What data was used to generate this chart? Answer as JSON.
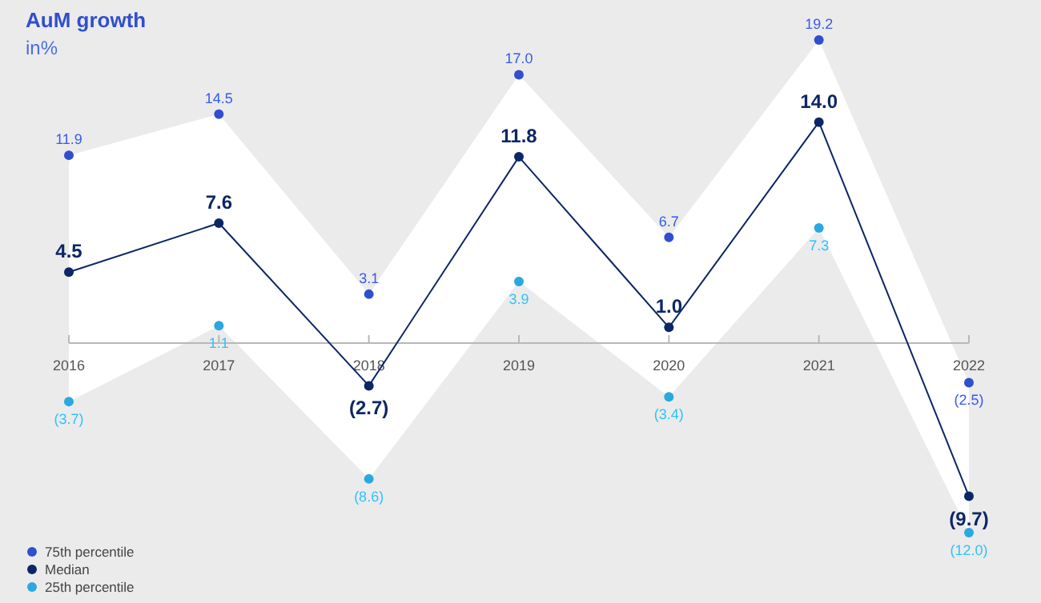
{
  "chart_data": {
    "type": "line",
    "title": "AuM growth",
    "subtitle": "in%",
    "relative": false,
    "categories": [
      "2016",
      "2017",
      "2018",
      "2019",
      "2020",
      "2021",
      "2022"
    ],
    "series": [
      {
        "name": "75th percentile",
        "type": "scatter",
        "color": "#2f4fcf",
        "values": [
          11.9,
          14.5,
          3.1,
          17.0,
          6.7,
          19.2,
          -2.5
        ],
        "value_labels": [
          "11.9",
          "14.5",
          "3.1",
          "17.0",
          "6.7",
          "19.2",
          "(2.5)"
        ]
      },
      {
        "name": "Median",
        "color": "#0c2766",
        "values": [
          4.5,
          7.6,
          -2.7,
          11.8,
          1.0,
          14.0,
          -9.7
        ],
        "value_labels": [
          "4.5",
          "7.6",
          "(2.7)",
          "11.8",
          "1.0",
          "14.0",
          "(9.7)"
        ],
        "lower": [
          -3.7,
          1.1,
          -8.6,
          3.9,
          -3.4,
          7.3,
          -12.0
        ],
        "upper": [
          11.9,
          14.5,
          3.1,
          17.0,
          6.7,
          19.2,
          -2.5
        ]
      },
      {
        "name": "25th percentile",
        "type": "scatter",
        "color": "#2aa8e0",
        "values": [
          -3.7,
          1.1,
          -8.6,
          3.9,
          -3.4,
          7.3,
          -12.0
        ],
        "value_labels": [
          "(3.7)",
          "1.1",
          "(8.6)",
          "3.9",
          "(3.4)",
          "7.3",
          "(12.0)"
        ]
      }
    ],
    "marker": "circle",
    "legend": "bottom left",
    "grid": false
  }
}
